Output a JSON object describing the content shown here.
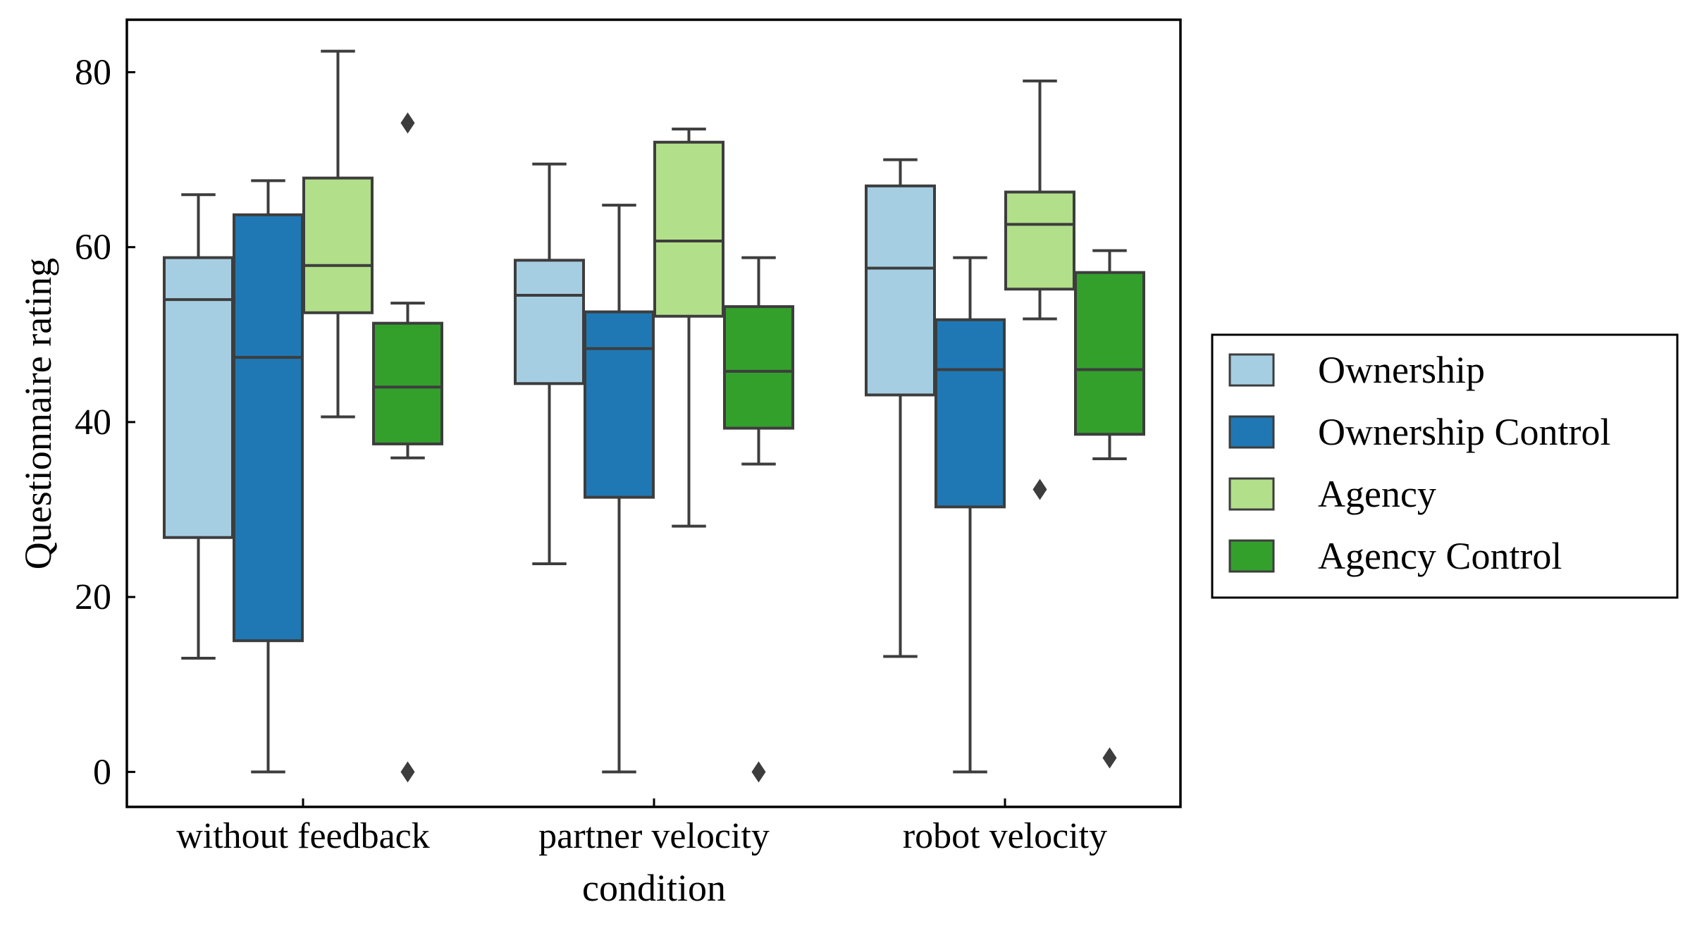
{
  "chart_data": {
    "type": "box",
    "xlabel": "condition",
    "ylabel": "Questionnaire rating",
    "ylim": [
      -4,
      86
    ],
    "yticks": [
      0,
      20,
      40,
      60,
      80
    ],
    "categories": [
      "without feedback",
      "partner velocity",
      "robot velocity"
    ],
    "legend": {
      "placement": "right, outside plot"
    },
    "grid": false,
    "series": [
      {
        "name": "Ownership",
        "color": "#a6cee3",
        "boxes": [
          {
            "whisker_low": 13,
            "q1": 26.8,
            "median": 54,
            "q3": 58.8,
            "whisker_high": 66,
            "outliers": []
          },
          {
            "whisker_low": 23.8,
            "q1": 44.4,
            "median": 54.5,
            "q3": 58.5,
            "whisker_high": 69.5,
            "outliers": []
          },
          {
            "whisker_low": 13.2,
            "q1": 43.1,
            "median": 57.6,
            "q3": 67,
            "whisker_high": 70,
            "outliers": []
          }
        ]
      },
      {
        "name": "Ownership Control",
        "color": "#1f78b4",
        "boxes": [
          {
            "whisker_low": 0,
            "q1": 15,
            "median": 47.4,
            "q3": 63.7,
            "whisker_high": 67.6,
            "outliers": []
          },
          {
            "whisker_low": 0,
            "q1": 31.4,
            "median": 48.4,
            "q3": 52.6,
            "whisker_high": 64.8,
            "outliers": []
          },
          {
            "whisker_low": 0,
            "q1": 30.3,
            "median": 46,
            "q3": 51.7,
            "whisker_high": 58.8,
            "outliers": []
          }
        ]
      },
      {
        "name": "Agency",
        "color": "#b2df8a",
        "boxes": [
          {
            "whisker_low": 40.6,
            "q1": 52.5,
            "median": 57.9,
            "q3": 67.9,
            "whisker_high": 82.4,
            "outliers": []
          },
          {
            "whisker_low": 28.1,
            "q1": 52.1,
            "median": 60.7,
            "q3": 72,
            "whisker_high": 73.5,
            "outliers": []
          },
          {
            "whisker_low": 51.8,
            "q1": 55.2,
            "median": 62.6,
            "q3": 66.3,
            "whisker_high": 79,
            "outliers": [
              32.3
            ]
          }
        ]
      },
      {
        "name": "Agency Control",
        "color": "#33a02c",
        "boxes": [
          {
            "whisker_low": 35.9,
            "q1": 37.5,
            "median": 44,
            "q3": 51.3,
            "whisker_high": 53.6,
            "outliers": [
              74.2,
              0
            ]
          },
          {
            "whisker_low": 35.2,
            "q1": 39.3,
            "median": 45.8,
            "q3": 53.2,
            "whisker_high": 58.8,
            "outliers": [
              0
            ]
          },
          {
            "whisker_low": 35.8,
            "q1": 38.6,
            "median": 46,
            "q3": 57.1,
            "whisker_high": 59.6,
            "outliers": [
              1.6
            ]
          }
        ]
      }
    ]
  }
}
